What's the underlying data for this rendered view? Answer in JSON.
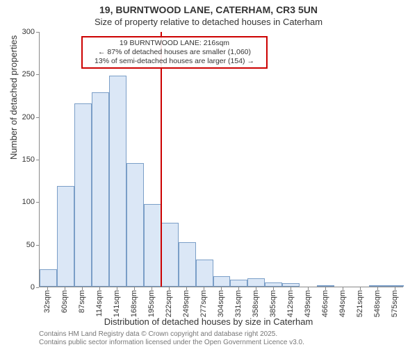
{
  "title": {
    "main": "19, BURNTWOOD LANE, CATERHAM, CR3 5UN",
    "sub": "Size of property relative to detached houses in Caterham",
    "main_fontsize": 14,
    "sub_fontsize": 13,
    "color": "#333333"
  },
  "chart": {
    "type": "histogram",
    "background_color": "#ffffff",
    "axis_color": "#888888",
    "ylabel": "Number of detached properties",
    "xlabel": "Distribution of detached houses by size in Caterham",
    "label_fontsize": 13,
    "tick_fontsize": 11,
    "ylim": [
      0,
      300
    ],
    "ytick_step": 50,
    "yticks": [
      0,
      50,
      100,
      150,
      200,
      250,
      300
    ],
    "xcategories": [
      "32sqm",
      "60sqm",
      "87sqm",
      "114sqm",
      "141sqm",
      "168sqm",
      "195sqm",
      "222sqm",
      "249sqm",
      "277sqm",
      "304sqm",
      "331sqm",
      "358sqm",
      "385sqm",
      "412sqm",
      "439sqm",
      "466sqm",
      "494sqm",
      "521sqm",
      "548sqm",
      "575sqm"
    ],
    "values": [
      20,
      118,
      215,
      228,
      248,
      145,
      97,
      75,
      52,
      32,
      12,
      8,
      10,
      5,
      4,
      0,
      2,
      0,
      0,
      2,
      2
    ],
    "bar_fill": "#dbe7f6",
    "bar_border": "#7a9ec7",
    "bar_width_ratio": 1.0,
    "marker": {
      "index_after": 6,
      "color": "#cc0000"
    },
    "callout": {
      "line1": "19 BURNTWOOD LANE: 216sqm",
      "line2": "← 87% of detached houses are smaller (1,060)",
      "line3": "13% of semi-detached houses are larger (154) →",
      "border_color": "#cc0000",
      "background_color": "rgba(255,255,255,0.9)",
      "fontsize": 10.5
    }
  },
  "footer": {
    "line1": "Contains HM Land Registry data © Crown copyright and database right 2025.",
    "line2": "Contains public sector information licensed under the Open Government Licence v3.0.",
    "color": "#777777",
    "fontsize": 10
  }
}
